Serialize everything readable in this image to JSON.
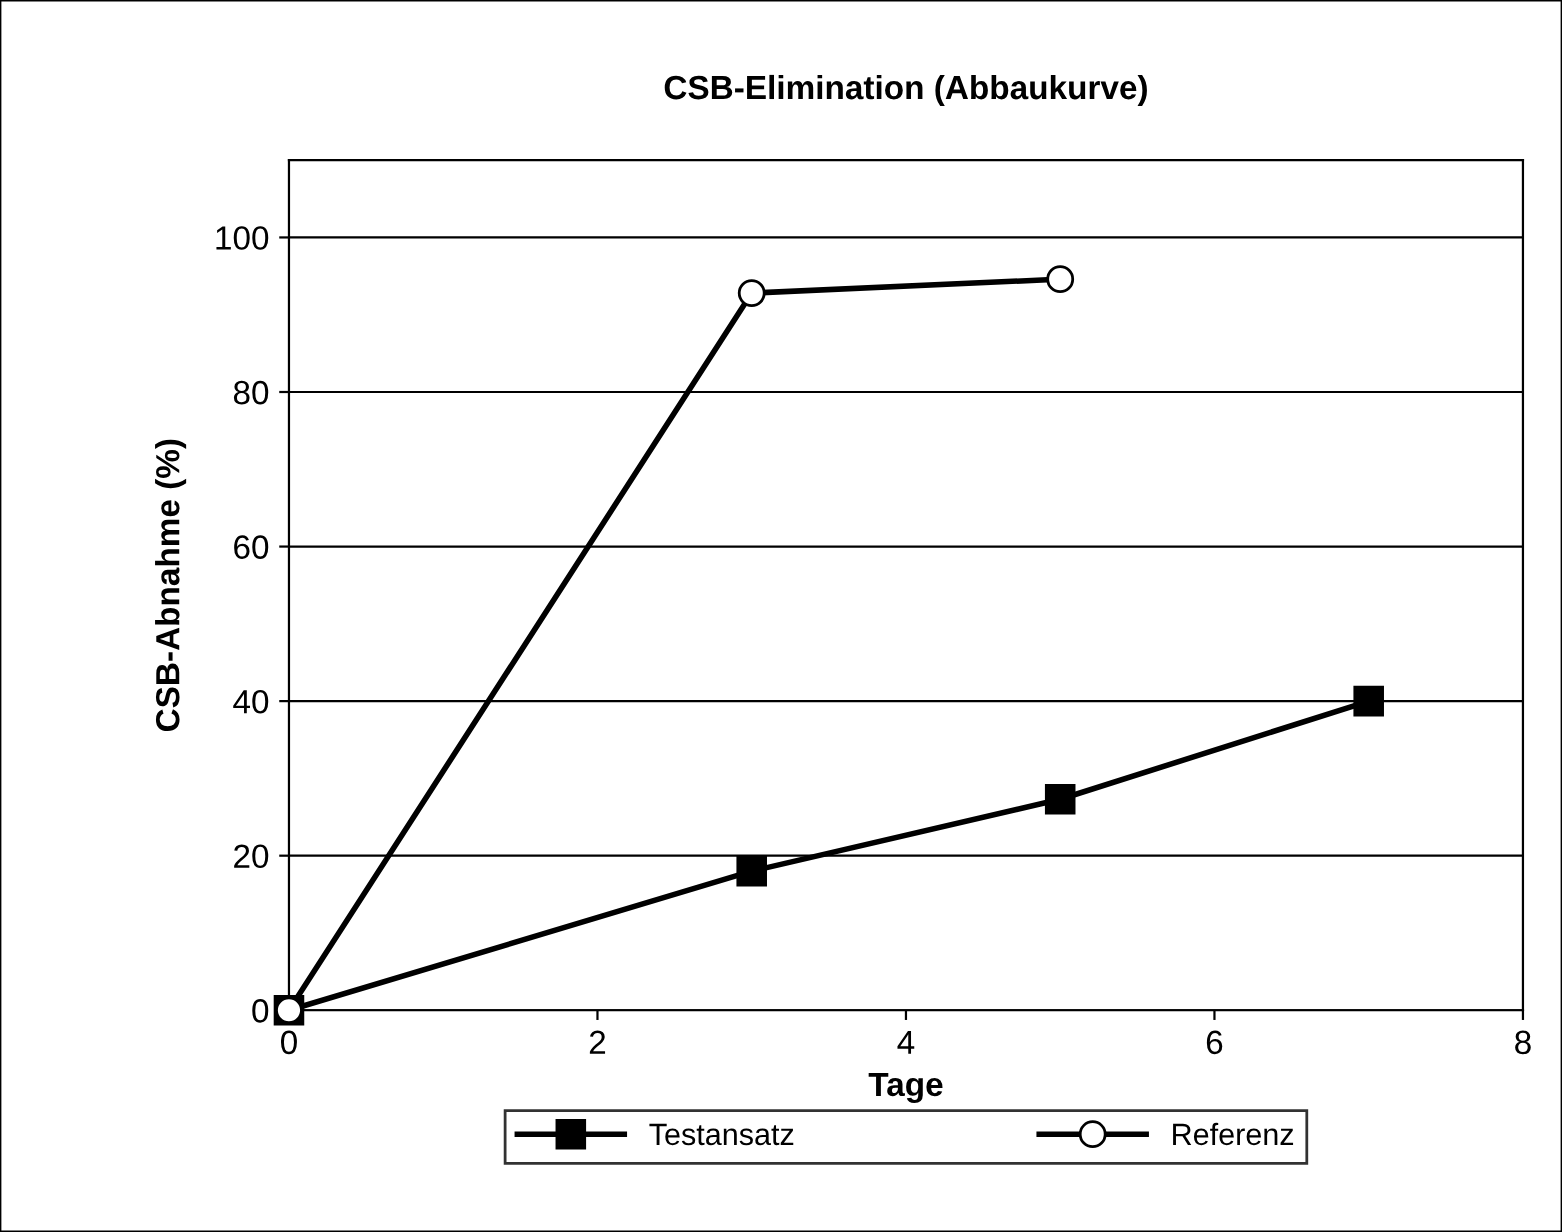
{
  "chart_data": {
    "type": "line",
    "title": "CSB-Elimination (Abbaukurve)",
    "xlabel": "Tage",
    "ylabel": "CSB-Abnahme (%)",
    "xlim": [
      0,
      8
    ],
    "xticks": [
      0,
      2,
      4,
      6,
      8
    ],
    "ylim": [
      0,
      110
    ],
    "yticks": [
      0,
      20,
      40,
      60,
      80,
      100
    ],
    "grid": "y",
    "legend": "bottom",
    "series": [
      {
        "name": "Testansatz",
        "color": "#000000",
        "marker": "square",
        "x": [
          0,
          3,
          5,
          7
        ],
        "values": [
          0,
          18,
          27.3,
          40
        ]
      },
      {
        "name": "Referenz",
        "color": "#000000",
        "marker": "circle",
        "x": [
          0,
          3,
          5
        ],
        "values": [
          0,
          92.8,
          94.6
        ]
      }
    ]
  }
}
